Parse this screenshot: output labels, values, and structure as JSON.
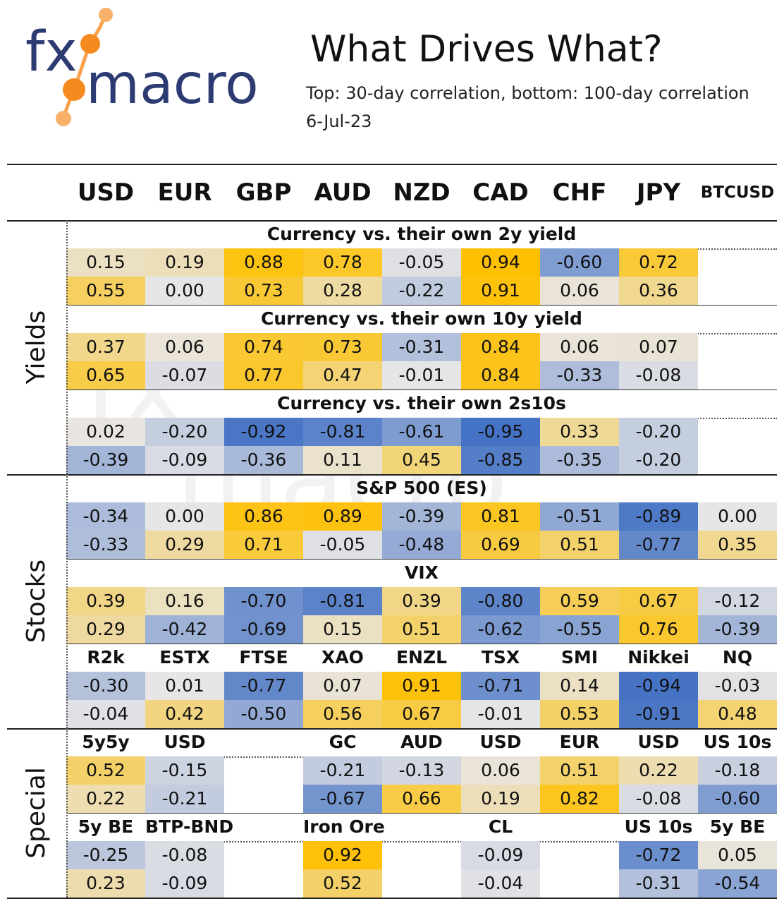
{
  "logo": {
    "line1": "fx",
    "line2": "macro"
  },
  "header": {
    "title": "What Drives What?",
    "subtitle": "Top: 30-day correlation, bottom: 100-day correlation",
    "date": "6-Jul-23"
  },
  "chart_data": {
    "type": "table",
    "columns": [
      "USD",
      "EUR",
      "GBP",
      "AUD",
      "NZD",
      "CAD",
      "CHF",
      "JPY",
      "BTCUSD"
    ],
    "sections": [
      {
        "label": "Yields",
        "groups": [
          {
            "title": "Currency vs. their own 2y yield",
            "top": [
              0.15,
              0.19,
              0.88,
              0.78,
              -0.05,
              0.94,
              -0.6,
              0.72,
              null
            ],
            "bottom": [
              0.55,
              0.0,
              0.73,
              0.28,
              -0.22,
              0.91,
              0.06,
              0.36,
              null
            ]
          },
          {
            "title": "Currency vs. their own 10y yield",
            "top": [
              0.37,
              0.06,
              0.74,
              0.73,
              -0.31,
              0.84,
              0.06,
              0.07,
              null
            ],
            "bottom": [
              0.65,
              -0.07,
              0.77,
              0.47,
              -0.01,
              0.84,
              -0.33,
              -0.08,
              null
            ]
          },
          {
            "title": "Currency vs. their own 2s10s",
            "top": [
              0.02,
              -0.2,
              -0.92,
              -0.81,
              -0.61,
              -0.95,
              0.33,
              -0.2,
              null
            ],
            "bottom": [
              -0.39,
              -0.09,
              -0.36,
              0.11,
              0.45,
              -0.85,
              -0.35,
              -0.2,
              null
            ]
          }
        ]
      },
      {
        "label": "Stocks",
        "groups": [
          {
            "title": "S&P 500 (ES)",
            "top": [
              -0.34,
              0.0,
              0.86,
              0.89,
              -0.39,
              0.81,
              -0.51,
              -0.89,
              0.0
            ],
            "bottom": [
              -0.33,
              0.29,
              0.71,
              -0.05,
              -0.48,
              0.69,
              0.51,
              -0.77,
              0.35
            ]
          },
          {
            "title": "VIX",
            "top": [
              0.39,
              0.16,
              -0.7,
              -0.81,
              0.39,
              -0.8,
              0.59,
              0.67,
              -0.12
            ],
            "bottom": [
              0.29,
              -0.42,
              -0.69,
              0.15,
              0.51,
              -0.62,
              -0.55,
              0.76,
              -0.39
            ]
          },
          {
            "title": "",
            "labels": [
              "R2k",
              "ESTX",
              "FTSE",
              "XAO",
              "ENZL",
              "TSX",
              "SMI",
              "Nikkei",
              "NQ"
            ],
            "top": [
              -0.3,
              0.01,
              -0.77,
              0.07,
              0.91,
              -0.71,
              0.14,
              -0.94,
              -0.03
            ],
            "bottom": [
              -0.04,
              0.42,
              -0.5,
              0.56,
              0.67,
              -0.01,
              0.53,
              -0.91,
              0.48
            ]
          }
        ]
      },
      {
        "label": "Special",
        "groups": [
          {
            "title": "",
            "labels": [
              "5y5y",
              "USD",
              "",
              "GC",
              "AUD",
              "USD",
              "EUR",
              "USD",
              "US 10s"
            ],
            "top": [
              0.52,
              -0.15,
              null,
              -0.21,
              -0.13,
              0.06,
              0.51,
              0.22,
              -0.18
            ],
            "bottom": [
              0.22,
              -0.21,
              null,
              -0.67,
              0.66,
              0.19,
              0.82,
              -0.08,
              -0.6
            ]
          },
          {
            "title": "",
            "labels": [
              "5y BE",
              "BTP-BND",
              "",
              "Iron Ore",
              "",
              "CL",
              "",
              "US 10s",
              "5y BE"
            ],
            "top": [
              -0.25,
              -0.08,
              null,
              0.92,
              null,
              -0.09,
              null,
              -0.72,
              0.05
            ],
            "bottom": [
              0.23,
              -0.09,
              null,
              0.52,
              null,
              -0.04,
              null,
              -0.31,
              -0.54
            ]
          }
        ]
      }
    ]
  }
}
